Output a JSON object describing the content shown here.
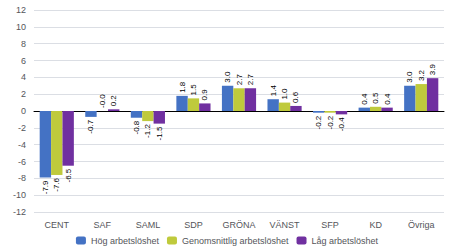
{
  "chart_data": {
    "type": "bar",
    "categories": [
      "CENT",
      "SAF",
      "SAML",
      "SDP",
      "GRÖNA",
      "VÄNST",
      "SFP",
      "KD",
      "Övriga"
    ],
    "series": [
      {
        "name": "Hög arbetslöshet",
        "color": "#4472C4",
        "values": [
          -7.9,
          -0.7,
          -0.8,
          1.8,
          3.0,
          1.4,
          -0.2,
          0.4,
          3.0
        ],
        "value_labels": [
          "-7.9",
          "-0.7",
          "-0.8",
          "1.8",
          "3.0",
          "1.4",
          "-0.2",
          "0.4",
          "3.0"
        ]
      },
      {
        "name": "Genomsnittlig arbetslöshet",
        "color": "#BFCA3C",
        "values": [
          -7.6,
          -0.0,
          -1.2,
          1.5,
          2.7,
          1.0,
          -0.2,
          0.5,
          3.2
        ],
        "value_labels": [
          "-7.6",
          "-0.0",
          "-1.2",
          "1.5",
          "2.7",
          "1.0",
          "-0.2",
          "0.5",
          "3.2"
        ]
      },
      {
        "name": "Låg arbetslöshet",
        "color": "#7030A0",
        "values": [
          -6.5,
          0.2,
          -1.5,
          0.9,
          2.7,
          0.6,
          -0.4,
          0.4,
          3.9
        ],
        "value_labels": [
          "-6.5",
          "0.2",
          "-1.5",
          "0.9",
          "2.7",
          "0.6",
          "-0.4",
          "0.4",
          "3.9"
        ]
      }
    ],
    "ylim": [
      -12,
      12
    ],
    "yticks": [
      -12,
      -10,
      -8,
      -6,
      -4,
      -2,
      0,
      2,
      4,
      6,
      8,
      10,
      12
    ],
    "grid": true,
    "legend": "bottom",
    "data_labels": true
  }
}
